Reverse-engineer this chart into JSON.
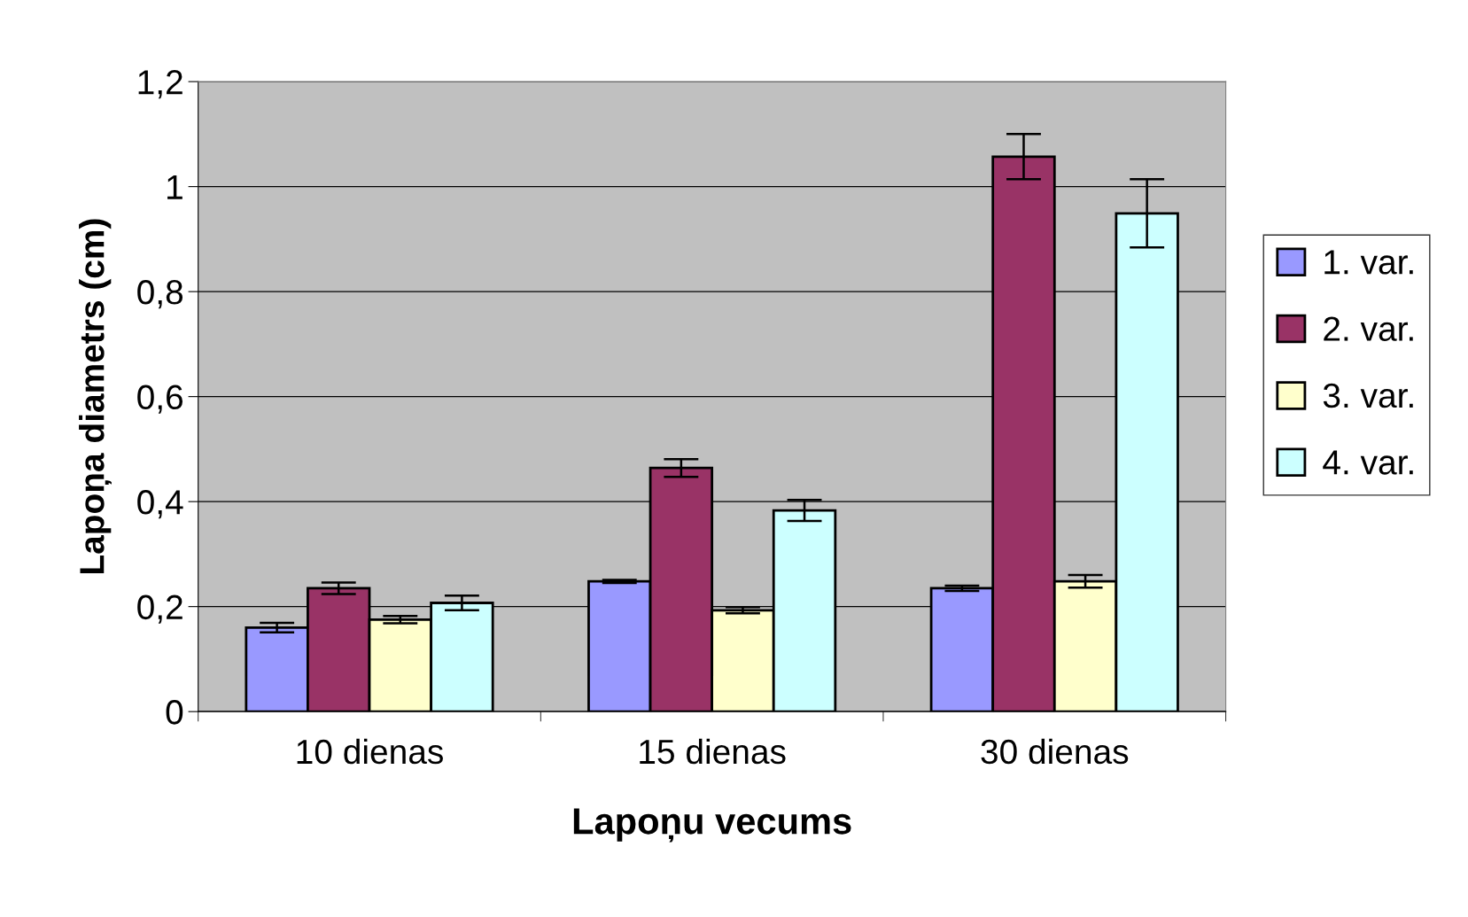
{
  "chart_data": {
    "type": "bar",
    "xlabel": "Lapoņu vecums",
    "ylabel": "Lapoņa diametrs (cm)",
    "categories": [
      "10 dienas",
      "15 dienas",
      "30 dienas"
    ],
    "series": [
      {
        "name": "1. var.",
        "color": "#9999ff",
        "values": [
          0.16,
          0.248,
          0.235
        ],
        "errors": [
          0.009,
          0.003,
          0.005
        ]
      },
      {
        "name": "2. var.",
        "color": "#993366",
        "values": [
          0.235,
          0.464,
          1.057
        ],
        "errors": [
          0.011,
          0.017,
          0.043
        ]
      },
      {
        "name": "3. var.",
        "color": "#ffffcc",
        "values": [
          0.175,
          0.193,
          0.248
        ],
        "errors": [
          0.007,
          0.006,
          0.012
        ]
      },
      {
        "name": "4. var.",
        "color": "#ccffff",
        "values": [
          0.207,
          0.383,
          0.949
        ],
        "errors": [
          0.014,
          0.02,
          0.065
        ]
      }
    ],
    "ylim": [
      0,
      1.2
    ],
    "yticks": [
      0,
      {
        "value": 0.2,
        "label": "0,2"
      },
      {
        "value": 0.4,
        "label": "0,4"
      },
      {
        "value": 0.6,
        "label": "0,6"
      },
      {
        "value": 0.8,
        "label": "0,8"
      },
      1,
      {
        "value": 1.2,
        "label": "1,2"
      }
    ],
    "grid": "y",
    "legend": "right"
  }
}
